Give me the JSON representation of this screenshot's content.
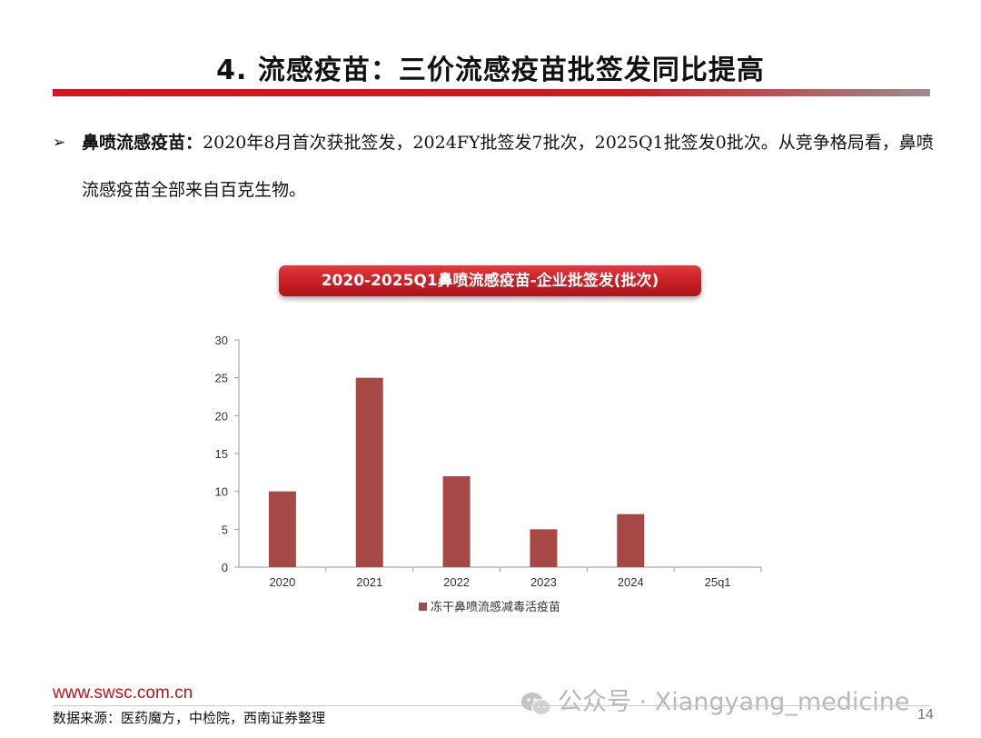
{
  "slide": {
    "title": "4. 流感疫苗：三价流感疫苗批签发同比提高",
    "bullet": {
      "lead": "鼻喷流感疫苗：",
      "body": "2020年8月首次获批签发，2024FY批签发7批次，2025Q1批签发0批次。从竞争格局看，鼻喷流感疫苗全部来自百克生物。"
    },
    "chart_banner": "2020-2025Q1鼻喷流感疫苗-企业批签发(批次)",
    "footer": {
      "site": "www.swsc.com.cn",
      "source": "数据来源：医药魔方，中检院，西南证券整理",
      "watermark": "公众号 · Xiangyang_medicine",
      "page": "14"
    }
  },
  "colors": {
    "accent_red": "#c81e25",
    "bar": "#a84846",
    "axis": "#9a9a9a"
  },
  "chart_data": {
    "type": "bar",
    "title": "",
    "categories": [
      "2020",
      "2021",
      "2022",
      "2023",
      "2024",
      "25q1"
    ],
    "series": [
      {
        "name": "冻干鼻喷流感减毒活疫苗",
        "values": [
          10,
          25,
          12,
          5,
          7,
          0
        ]
      }
    ],
    "ylim": [
      0,
      30
    ],
    "yticks": [
      0,
      5,
      10,
      15,
      20,
      25,
      30
    ],
    "xlabel": "",
    "ylabel": "",
    "grid": false,
    "legend_position": "bottom"
  }
}
